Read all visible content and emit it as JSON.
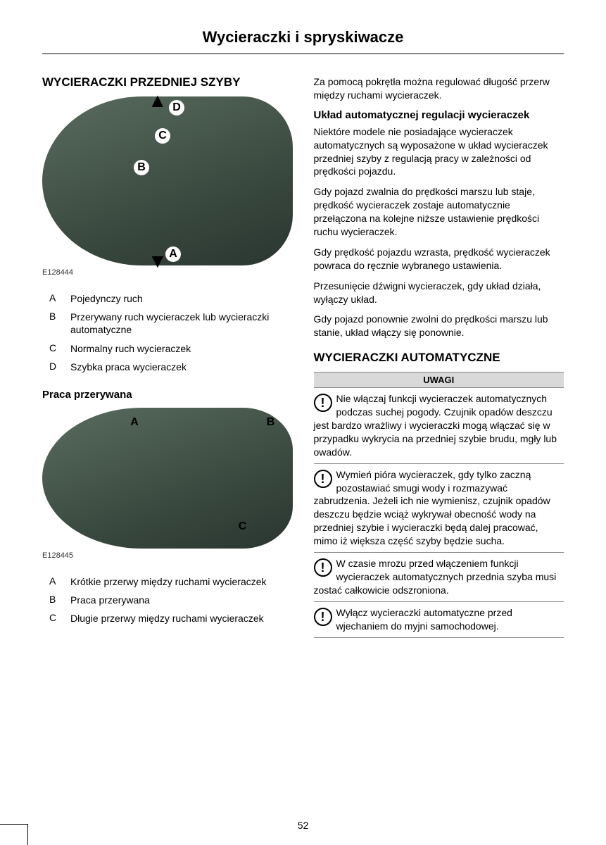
{
  "pageTitle": "Wycieraczki i spryskiwacze",
  "pageNumber": "52",
  "left": {
    "heading1": "WYCIERACZKI PRZEDNIEJ SZYBY",
    "fig1": {
      "caption": "E128444",
      "labels": {
        "A": "A",
        "B": "B",
        "C": "C",
        "D": "D"
      }
    },
    "defs1": [
      {
        "k": "A",
        "v": "Pojedynczy ruch"
      },
      {
        "k": "B",
        "v": "Przerywany ruch wycieraczek lub wycieraczki automatyczne"
      },
      {
        "k": "C",
        "v": "Normalny ruch wycieraczek"
      },
      {
        "k": "D",
        "v": "Szybka praca wycieraczek"
      }
    ],
    "heading2": "Praca przerywana",
    "fig2": {
      "caption": "E128445",
      "labels": {
        "A": "A",
        "B": "B",
        "C": "C"
      }
    },
    "defs2": [
      {
        "k": "A",
        "v": "Krótkie przerwy między ruchami wycieraczek"
      },
      {
        "k": "B",
        "v": "Praca przerywana"
      },
      {
        "k": "C",
        "v": "Długie przerwy między ruchami wycieraczek"
      }
    ]
  },
  "right": {
    "p1": "Za pomocą pokrętła można regulować długość przerw między ruchami wycieraczek.",
    "h3a": "Układ automatycznej regulacji wycieraczek",
    "p2": "Niektóre modele nie posiadające wycieraczek automatycznych są wyposażone w układ wycieraczek przedniej szyby z regulacją pracy w zależności od prędkości pojazdu.",
    "p3": "Gdy pojazd zwalnia do prędkości marszu lub staje, prędkość wycieraczek zostaje automatycznie przełączona na kolejne niższe ustawienie prędkości ruchu wycieraczek.",
    "p4": "Gdy prędkość pojazdu wzrasta, prędkość wycieraczek powraca do ręcznie wybranego ustawienia.",
    "p5": "Przesunięcie dźwigni wycieraczek, gdy układ działa, wyłączy układ.",
    "p6": "Gdy pojazd ponownie zwolni do prędkości marszu lub stanie, układ włączy się ponownie.",
    "heading2": "WYCIERACZKI AUTOMATYCZNE",
    "noticeHeader": "UWAGI",
    "notices": [
      "Nie włączaj funkcji wycieraczek automatycznych podczas suchej pogody. Czujnik opadów deszczu jest bardzo wrażliwy i wycieraczki mogą włączać się w przypadku wykrycia na przedniej szybie brudu, mgły lub owadów.",
      "Wymień pióra wycieraczek, gdy tylko zaczną pozostawiać smugi wody i rozmazywać zabrudzenia. Jeżeli ich nie wymienisz, czujnik opadów deszczu będzie wciąż wykrywał obecność wody na przedniej szybie i wycieraczki będą dalej pracować, mimo iż większa część szyby będzie sucha.",
      "W czasie mrozu przed włączeniem funkcji wycieraczek automatycznych przednia szyba musi zostać całkowicie odszroniona.",
      "Wyłącz wycieraczki automatyczne przed wjechaniem do myjni samochodowej."
    ]
  }
}
